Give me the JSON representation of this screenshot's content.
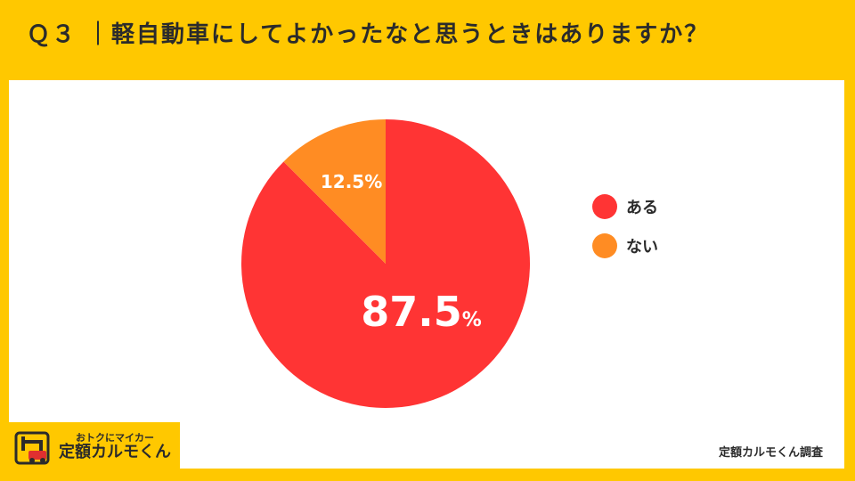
{
  "title": "Ｑ３ ｜軽自動車にしてよかったなと思うときはありますか？",
  "source": "定額カルモくん調査",
  "logo": {
    "tagline": "おトクにマイカー",
    "brand": "定額カルモくん",
    "icon": "car-logo-icon"
  },
  "colors": {
    "background": "#FFC800",
    "panel": "#FFFFFF",
    "aru": "#FF3434",
    "nai": "#FF8C23"
  },
  "chart_data": {
    "type": "pie",
    "title": "Ｑ３ ｜軽自動車にしてよかったなと思うときはありますか？",
    "categories": [
      "ある",
      "ない"
    ],
    "values": [
      87.5,
      12.5
    ],
    "value_labels": [
      "87.5%",
      "12.5%"
    ],
    "legend": [
      "ある",
      "ない"
    ],
    "legend_position": "right",
    "start_angle": "top, clockwise"
  }
}
